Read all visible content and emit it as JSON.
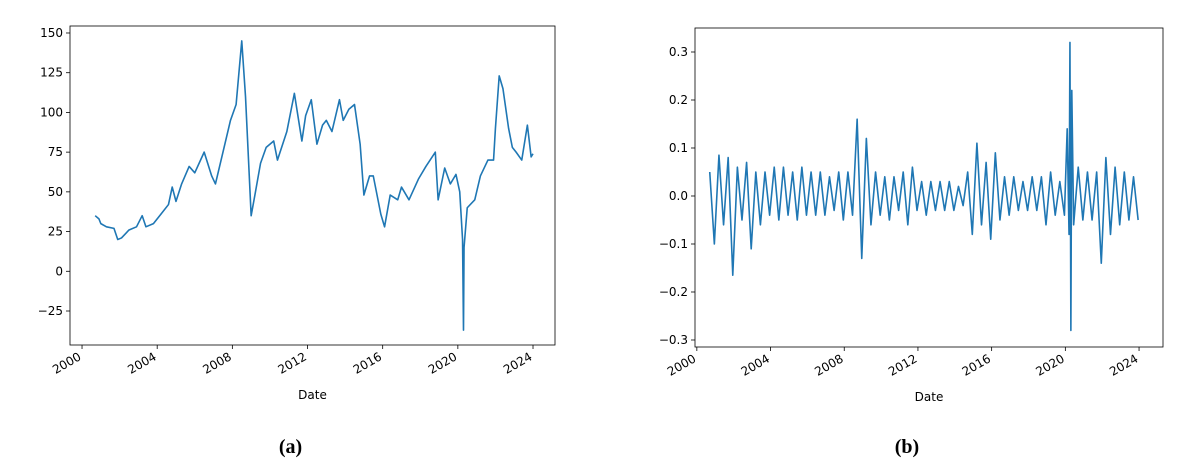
{
  "chart_data": [
    {
      "type": "line",
      "caption": "(a)",
      "xlabel": "Date",
      "grid": false,
      "xlim": [
        1999.36,
        2025.17
      ],
      "xticks": [
        2000,
        2004,
        2008,
        2012,
        2016,
        2020,
        2024
      ],
      "ylim": [
        -46.4,
        154.4
      ],
      "yticks": [
        {
          "value": -25,
          "label": "−25"
        },
        0,
        25,
        50,
        75,
        100,
        125,
        150
      ],
      "x": [
        2000.7,
        2000.9,
        2001.0,
        2001.3,
        2001.7,
        2001.9,
        2002.1,
        2002.5,
        2002.9,
        2003.2,
        2003.4,
        2003.8,
        2004.2,
        2004.6,
        2004.8,
        2005.0,
        2005.3,
        2005.7,
        2006.0,
        2006.5,
        2006.9,
        2007.1,
        2007.5,
        2007.9,
        2008.2,
        2008.5,
        2008.7,
        2008.9,
        2009.0,
        2009.2,
        2009.5,
        2009.8,
        2010.2,
        2010.4,
        2010.9,
        2011.3,
        2011.7,
        2011.9,
        2012.2,
        2012.5,
        2012.8,
        2013.0,
        2013.3,
        2013.7,
        2013.9,
        2014.2,
        2014.5,
        2014.8,
        2015.0,
        2015.3,
        2015.5,
        2015.9,
        2016.1,
        2016.4,
        2016.8,
        2017.0,
        2017.4,
        2017.9,
        2018.3,
        2018.8,
        2018.95,
        2019.3,
        2019.6,
        2019.9,
        2020.1,
        2020.25,
        2020.3,
        2020.33,
        2020.5,
        2020.9,
        2021.2,
        2021.6,
        2021.9,
        2022.0,
        2022.2,
        2022.4,
        2022.7,
        2022.9,
        2023.1,
        2023.4,
        2023.7,
        2023.9,
        2024.0
      ],
      "series": [
        {
          "color": "#1f77b4",
          "values": [
            35,
            33,
            30,
            28,
            27,
            20,
            21,
            26,
            28,
            35,
            28,
            30,
            36,
            42,
            53,
            44,
            55,
            66,
            62,
            75,
            60,
            55,
            75,
            95,
            105,
            145,
            110,
            60,
            35,
            48,
            68,
            78,
            82,
            70,
            88,
            112,
            82,
            98,
            108,
            80,
            92,
            95,
            88,
            108,
            95,
            102,
            105,
            80,
            48,
            60,
            60,
            36,
            28,
            48,
            45,
            53,
            45,
            58,
            66,
            75,
            45,
            65,
            55,
            61,
            50,
            20,
            -37,
            15,
            40,
            45,
            60,
            70,
            70,
            90,
            123,
            115,
            90,
            78,
            75,
            70,
            92,
            72,
            74
          ]
        }
      ]
    },
    {
      "type": "line",
      "caption": "(b)",
      "xlabel": "Date",
      "grid": false,
      "xlim": [
        1999.9,
        2025.3
      ],
      "xticks": [
        2000,
        2004,
        2008,
        2012,
        2016,
        2020,
        2024
      ],
      "ylim": [
        -0.3146,
        0.35
      ],
      "yticks": [
        {
          "value": -0.3,
          "label": "−0.3"
        },
        {
          "value": -0.2,
          "label": "−0.2"
        },
        {
          "value": -0.1,
          "label": "−0.1"
        },
        {
          "value": 0,
          "label": "0.0"
        },
        0.1,
        0.2,
        0.3
      ],
      "x": [
        2000.7,
        2000.95,
        2001.2,
        2001.45,
        2001.7,
        2001.95,
        2002.2,
        2002.45,
        2002.7,
        2002.95,
        2003.2,
        2003.45,
        2003.7,
        2003.95,
        2004.2,
        2004.45,
        2004.7,
        2004.95,
        2005.2,
        2005.45,
        2005.7,
        2005.95,
        2006.2,
        2006.45,
        2006.7,
        2006.95,
        2007.2,
        2007.45,
        2007.7,
        2007.95,
        2008.2,
        2008.45,
        2008.7,
        2008.95,
        2009.2,
        2009.45,
        2009.7,
        2009.95,
        2010.2,
        2010.45,
        2010.7,
        2010.95,
        2011.2,
        2011.45,
        2011.7,
        2011.95,
        2012.2,
        2012.45,
        2012.7,
        2012.95,
        2013.2,
        2013.45,
        2013.7,
        2013.95,
        2014.2,
        2014.45,
        2014.7,
        2014.95,
        2015.2,
        2015.45,
        2015.7,
        2015.95,
        2016.2,
        2016.45,
        2016.7,
        2016.95,
        2017.2,
        2017.45,
        2017.7,
        2017.95,
        2018.2,
        2018.45,
        2018.7,
        2018.95,
        2019.2,
        2019.45,
        2019.7,
        2019.95,
        2020.1,
        2020.2,
        2020.25,
        2020.3,
        2020.35,
        2020.45,
        2020.7,
        2020.95,
        2021.2,
        2021.45,
        2021.7,
        2021.95,
        2022.2,
        2022.45,
        2022.7,
        2022.95,
        2023.2,
        2023.45,
        2023.7,
        2023.95
      ],
      "series": [
        {
          "color": "#1f77b4",
          "values": [
            0.05,
            -0.1,
            0.085,
            -0.06,
            0.08,
            -0.165,
            0.06,
            -0.05,
            0.07,
            -0.11,
            0.05,
            -0.06,
            0.05,
            -0.04,
            0.06,
            -0.05,
            0.06,
            -0.04,
            0.05,
            -0.05,
            0.06,
            -0.04,
            0.05,
            -0.04,
            0.05,
            -0.04,
            0.04,
            -0.03,
            0.05,
            -0.05,
            0.05,
            -0.04,
            0.16,
            -0.13,
            0.12,
            -0.06,
            0.05,
            -0.04,
            0.04,
            -0.05,
            0.04,
            -0.03,
            0.05,
            -0.06,
            0.06,
            -0.03,
            0.03,
            -0.04,
            0.03,
            -0.03,
            0.03,
            -0.03,
            0.03,
            -0.03,
            0.02,
            -0.02,
            0.05,
            -0.08,
            0.11,
            -0.06,
            0.07,
            -0.09,
            0.09,
            -0.05,
            0.04,
            -0.04,
            0.04,
            -0.03,
            0.03,
            -0.03,
            0.04,
            -0.03,
            0.04,
            -0.06,
            0.05,
            -0.04,
            0.03,
            -0.04,
            0.14,
            -0.08,
            0.32,
            -0.28,
            0.22,
            -0.06,
            0.06,
            -0.05,
            0.05,
            -0.05,
            0.05,
            -0.14,
            0.08,
            -0.08,
            0.06,
            -0.06,
            0.05,
            -0.05,
            0.04,
            -0.05
          ]
        }
      ]
    }
  ]
}
